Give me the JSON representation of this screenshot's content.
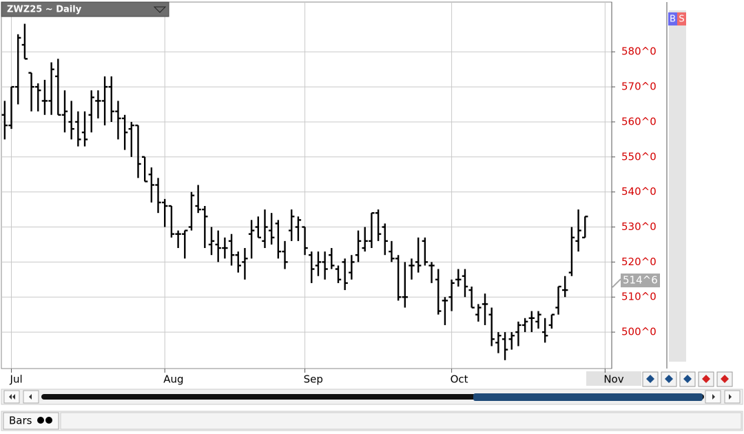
{
  "chart_data": {
    "type": "ohlc",
    "title": "ZWZ25 ~ Daily",
    "color": "#000000",
    "axis_color": "#d40000",
    "open": [
      562,
      559,
      570,
      582,
      574,
      570,
      566,
      566,
      573,
      562,
      560,
      560,
      557,
      562,
      566,
      566,
      570,
      563,
      561,
      558,
      559,
      550,
      545,
      542,
      537,
      536,
      528,
      528,
      530,
      536,
      535,
      525,
      525,
      524,
      526,
      522,
      520,
      528,
      530,
      526,
      529,
      531,
      523,
      529,
      530,
      530,
      522,
      519,
      520,
      522,
      518,
      520,
      517,
      522,
      524,
      526,
      534,
      530,
      523,
      521,
      510,
      519,
      520,
      526,
      519,
      515,
      509,
      510,
      515,
      516,
      512,
      505,
      508,
      505,
      497,
      498,
      498,
      500,
      502,
      504,
      503,
      500,
      502,
      507,
      512,
      517,
      526,
      527
    ],
    "high": [
      566,
      570,
      585,
      588,
      574,
      571,
      572,
      577,
      578,
      569,
      566,
      563,
      563,
      569,
      569,
      573,
      573,
      566,
      562,
      560,
      559,
      550,
      547,
      544,
      538,
      536,
      529,
      529,
      540,
      542,
      536,
      530,
      529,
      527,
      528,
      523,
      524,
      532,
      533,
      535,
      534,
      532,
      526,
      535,
      533,
      530,
      523,
      523,
      523,
      524,
      519,
      521,
      522,
      529,
      530,
      534,
      535,
      531,
      526,
      522,
      520,
      521,
      527,
      527,
      520,
      518,
      510,
      515,
      518,
      518,
      513,
      508,
      511,
      507,
      500,
      500,
      500,
      503,
      504,
      506,
      506,
      504,
      505,
      513,
      516,
      530,
      535,
      533
    ],
    "low": [
      555,
      558,
      565,
      578,
      563,
      563,
      562,
      562,
      562,
      557,
      555,
      553,
      553,
      557,
      561,
      559,
      560,
      555,
      552,
      550,
      544,
      543,
      537,
      534,
      530,
      527,
      524,
      521,
      529,
      534,
      524,
      522,
      520,
      521,
      519,
      517,
      515,
      521,
      527,
      524,
      525,
      521,
      518,
      526,
      526,
      522,
      514,
      516,
      515,
      518,
      514,
      512,
      515,
      520,
      523,
      524,
      526,
      522,
      520,
      509,
      507,
      515,
      517,
      519,
      514,
      505,
      502,
      506,
      513,
      510,
      507,
      503,
      502,
      496,
      494,
      492,
      495,
      496,
      500,
      500,
      501,
      497,
      501,
      505,
      510,
      516,
      523,
      527
    ],
    "close": [
      559,
      570,
      584,
      578,
      570,
      569,
      566,
      575,
      562,
      563,
      558,
      555,
      555,
      567,
      566,
      570,
      563,
      561,
      557,
      559,
      548,
      543,
      542,
      537,
      536,
      528,
      528,
      529,
      539,
      535,
      533,
      526,
      524,
      524,
      522,
      519,
      521,
      529,
      527,
      530,
      527,
      523,
      520,
      533,
      532,
      524,
      518,
      520,
      518,
      519,
      515,
      514,
      520,
      526,
      526,
      534,
      528,
      526,
      521,
      510,
      510,
      519,
      519,
      520,
      519,
      506,
      509,
      514,
      515,
      513,
      507,
      507,
      508,
      498,
      499,
      495,
      499,
      502,
      503,
      504,
      505,
      499,
      505,
      513,
      512,
      527,
      529,
      533
    ],
    "xlim": [
      -0.5,
      91
    ],
    "xticks": [
      {
        "value": 1,
        "label": "Jul"
      },
      {
        "value": 24,
        "label": "Aug"
      },
      {
        "value": 45,
        "label": "Sep"
      },
      {
        "value": 67,
        "label": "Oct"
      },
      {
        "value": 90,
        "label": "Nov"
      }
    ],
    "ylim": [
      489.6,
      594.2
    ],
    "yticks": [
      {
        "value": 500,
        "label": "500^0"
      },
      {
        "value": 510,
        "label": "510^0"
      },
      {
        "value": 520,
        "label": "520^0"
      },
      {
        "value": 530,
        "label": "530^0"
      },
      {
        "value": 540,
        "label": "540^0"
      },
      {
        "value": 550,
        "label": "550^0"
      },
      {
        "value": 560,
        "label": "560^0"
      },
      {
        "value": 570,
        "label": "570^0"
      },
      {
        "value": 580,
        "label": "580^0"
      }
    ],
    "grid": true,
    "last_price": {
      "value": 514.75,
      "label": "514^6"
    }
  },
  "toolbar": {
    "buy": "B",
    "sell": "S",
    "tab": "Bars"
  }
}
